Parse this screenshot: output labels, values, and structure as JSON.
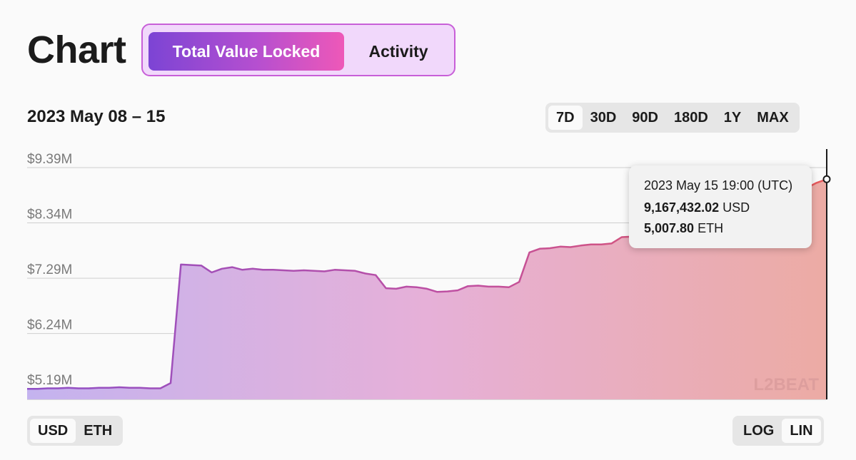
{
  "header": {
    "title": "Chart"
  },
  "tabs": [
    {
      "label": "Total Value Locked",
      "active": true
    },
    {
      "label": "Activity",
      "active": false
    }
  ],
  "date_range": "2023 May 08 – 15",
  "range_options": [
    "7D",
    "30D",
    "90D",
    "180D",
    "1Y",
    "MAX"
  ],
  "range_selected": "7D",
  "unit_options": [
    "USD",
    "ETH"
  ],
  "unit_selected": "USD",
  "scale_options": [
    "LOG",
    "LIN"
  ],
  "scale_selected": "LIN",
  "tooltip": {
    "time": "2023 May 15 19:00 (UTC)",
    "usd_value": "9,167,432.02",
    "usd_unit": "USD",
    "eth_value": "5,007.80",
    "eth_unit": "ETH"
  },
  "watermark": "L2BEAT",
  "colors": {
    "line_start": "#8f4fc7",
    "line_end": "#e85a5a",
    "accent": "#c85fd8"
  },
  "chart_data": {
    "type": "area",
    "title": "",
    "xlabel": "",
    "ylabel": "",
    "x_range": [
      "2023-05-08",
      "2023-05-15"
    ],
    "ylim": [
      4.99,
      9.39
    ],
    "y_ticks": [
      5.19,
      6.24,
      7.29,
      8.34,
      9.39
    ],
    "y_tick_labels": [
      "$5.19M",
      "$6.24M",
      "$7.29M",
      "$8.34M",
      "$9.39M"
    ],
    "grid": true,
    "values": [
      5.19,
      5.19,
      5.2,
      5.2,
      5.21,
      5.2,
      5.2,
      5.21,
      5.21,
      5.22,
      5.21,
      5.21,
      5.2,
      5.2,
      5.3,
      7.55,
      7.54,
      7.53,
      7.4,
      7.47,
      7.5,
      7.45,
      7.47,
      7.45,
      7.45,
      7.44,
      7.43,
      7.44,
      7.43,
      7.42,
      7.45,
      7.44,
      7.43,
      7.38,
      7.35,
      7.1,
      7.09,
      7.13,
      7.12,
      7.09,
      7.03,
      7.04,
      7.06,
      7.14,
      7.15,
      7.13,
      7.13,
      7.12,
      7.22,
      7.78,
      7.85,
      7.86,
      7.89,
      7.88,
      7.91,
      7.93,
      7.93,
      7.95,
      8.07,
      8.08,
      8.09,
      8.08,
      8.1,
      8.08,
      8.08,
      8.09,
      8.1,
      8.11,
      8.11,
      8.12,
      8.12,
      8.14,
      8.2,
      8.3,
      8.55,
      8.8,
      9.0,
      9.1,
      9.17
    ]
  }
}
